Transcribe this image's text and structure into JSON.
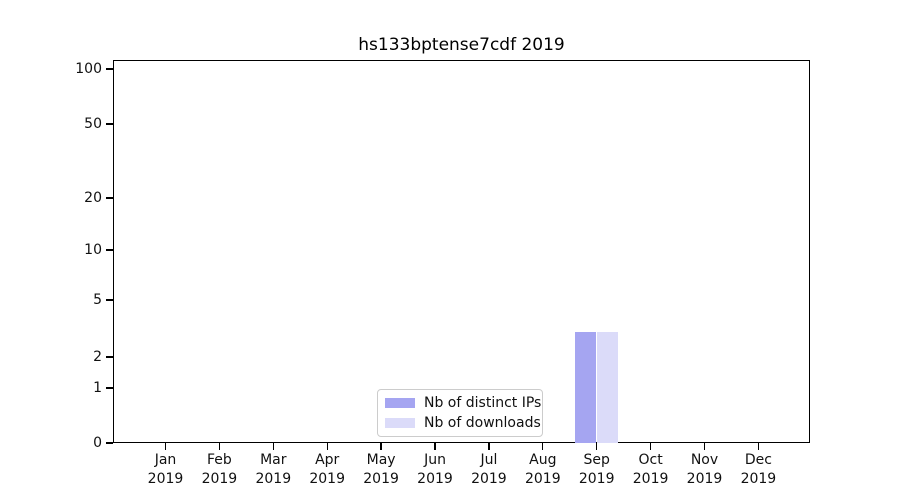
{
  "title": "hs133bptense7cdf 2019",
  "chart_data": {
    "type": "bar",
    "title": "hs133bptense7cdf 2019",
    "categories": [
      "Jan 2019",
      "Feb 2019",
      "Mar 2019",
      "Apr 2019",
      "May 2019",
      "Jun 2019",
      "Jul 2019",
      "Aug 2019",
      "Sep 2019",
      "Oct 2019",
      "Nov 2019",
      "Dec 2019"
    ],
    "series": [
      {
        "name": "Nb of distinct IPs",
        "color": "#a5a5f1",
        "values": [
          0,
          0,
          0,
          0,
          0,
          0,
          0,
          0,
          3,
          0,
          0,
          0
        ]
      },
      {
        "name": "Nb of downloads",
        "color": "#dbdbf9",
        "values": [
          0,
          0,
          0,
          0,
          0,
          0,
          0,
          0,
          3,
          0,
          0,
          0
        ]
      }
    ],
    "xlabel": "",
    "ylabel": "",
    "yscale": "symlog",
    "ytick_values": [
      0,
      1,
      2,
      5,
      10,
      20,
      50,
      100
    ],
    "ytick_labels": [
      "0",
      "1",
      "2",
      "5",
      "10",
      "20",
      "50",
      "100"
    ],
    "minor_grid_values": [
      2,
      3,
      4,
      5,
      6,
      7,
      8,
      9,
      20,
      30,
      40,
      50,
      60,
      70,
      80,
      90
    ],
    "major_grid_values": [
      1,
      10,
      100
    ],
    "ylim": [
      0,
      130
    ],
    "grid": "horizontal",
    "legend_position": "lower center inside"
  },
  "legend": {
    "items": [
      {
        "label": "Nb of distinct IPs",
        "color": "#a5a5f1"
      },
      {
        "label": "Nb of downloads",
        "color": "#dbdbf9"
      }
    ]
  },
  "colors": {
    "background": "#ffffff",
    "spine": "#000000",
    "grid_major": "#c9c9c9",
    "grid_minor": "#ededed",
    "text": "#111111",
    "legend_border": "#cccccc"
  }
}
